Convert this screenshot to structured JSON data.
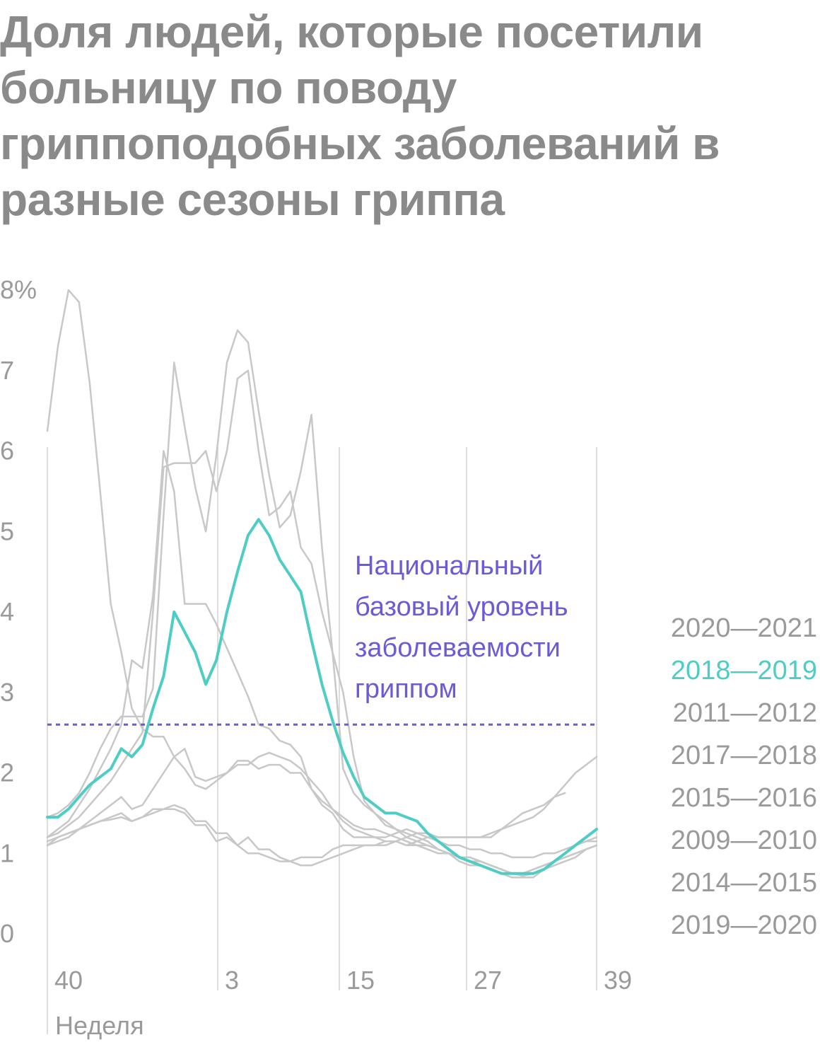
{
  "chart_data": {
    "type": "line",
    "title": "Доля людей, которые посетили больницу по поводу гриппоподобных заболеваний в разные сезоны гриппа",
    "xlabel": "Неделя",
    "ylabel": "",
    "y_unit": "%",
    "x_ticks": [
      "40",
      "3",
      "15",
      "27",
      "39"
    ],
    "y_ticks": [
      "0",
      "1",
      "2",
      "3",
      "4",
      "5",
      "6",
      "7",
      "8%"
    ],
    "ylim": [
      0,
      8
    ],
    "grid": "vertical",
    "legend_placement": "right",
    "baseline": {
      "value": 2.6,
      "label_lines": [
        "Национальный",
        "базовый уровень",
        "заболеваемости",
        "гриппом"
      ],
      "color": "#6b5bd6"
    },
    "highlight_color": "#4ecdc4",
    "muted_color": "#c8c8c8",
    "series": [
      {
        "name": "2020—2021",
        "highlight": false,
        "values": [
          1.1,
          1.2,
          1.25,
          1.3,
          1.35,
          1.4,
          1.42,
          1.45,
          1.4,
          1.45,
          1.5,
          1.55,
          1.55,
          1.5,
          1.35,
          1.35,
          1.15,
          1.2,
          1.1,
          1.0,
          1.0,
          0.95,
          0.9,
          0.9,
          0.85,
          0.85,
          0.9,
          0.95,
          1.0,
          1.05,
          1.1,
          1.1,
          1.15,
          1.15,
          1.1,
          1.15,
          1.2,
          1.15,
          1.1,
          1.1,
          1.05,
          1.05,
          1.0,
          1.0,
          0.95,
          0.95,
          0.95,
          1.0,
          1.0,
          1.05,
          1.1,
          1.15,
          1.15
        ]
      },
      {
        "name": "2018—2019",
        "highlight": true,
        "values": [
          1.45,
          1.45,
          1.55,
          1.7,
          1.85,
          1.95,
          2.05,
          2.3,
          2.2,
          2.35,
          2.8,
          3.2,
          4.0,
          3.75,
          3.5,
          3.1,
          3.4,
          4.0,
          4.5,
          4.95,
          5.15,
          4.95,
          4.65,
          4.45,
          4.25,
          3.65,
          3.1,
          2.65,
          2.25,
          1.95,
          1.7,
          1.6,
          1.5,
          1.5,
          1.45,
          1.4,
          1.25,
          1.15,
          1.05,
          0.95,
          0.9,
          0.85,
          0.8,
          0.75,
          0.75,
          0.75,
          0.75,
          0.8,
          0.9,
          1.0,
          1.1,
          1.2,
          1.3
        ]
      },
      {
        "name": "2011—2012",
        "highlight": false,
        "values": [
          1.15,
          1.2,
          1.25,
          1.3,
          1.35,
          1.4,
          1.45,
          1.5,
          1.4,
          1.45,
          1.55,
          1.55,
          1.6,
          1.55,
          1.4,
          1.4,
          1.25,
          1.25,
          1.1,
          1.2,
          1.05,
          1.05,
          0.95,
          0.9,
          0.95,
          0.95,
          0.95,
          1.05,
          1.1,
          1.1,
          1.1,
          1.1,
          1.1,
          1.15,
          1.2,
          1.25,
          1.2,
          1.2,
          1.2,
          1.2,
          1.2,
          1.2,
          1.25,
          1.3,
          1.4,
          1.5,
          1.55,
          1.6,
          1.7,
          1.75
        ]
      },
      {
        "name": "2017—2018",
        "highlight": false,
        "values": [
          1.2,
          1.25,
          1.35,
          1.45,
          1.6,
          1.75,
          1.9,
          2.1,
          2.3,
          2.5,
          4.0,
          5.8,
          5.85,
          5.85,
          5.85,
          6.0,
          5.5,
          6.0,
          6.9,
          7.0,
          6.0,
          5.2,
          5.3,
          5.5,
          4.8,
          4.6,
          4.0,
          3.5,
          3.0,
          2.2,
          1.65,
          1.5,
          1.35,
          1.3,
          1.25,
          1.2,
          1.15,
          1.05,
          1.0,
          0.9,
          0.85,
          0.85,
          0.8,
          0.75,
          0.7,
          0.7,
          0.7,
          0.8,
          0.9,
          1.0,
          1.1,
          1.15,
          1.2
        ]
      },
      {
        "name": "2015—2016",
        "highlight": false,
        "values": [
          1.1,
          1.15,
          1.2,
          1.3,
          1.4,
          1.5,
          1.6,
          1.7,
          1.55,
          1.6,
          1.8,
          2.0,
          2.2,
          2.05,
          1.85,
          1.8,
          1.9,
          2.0,
          2.15,
          2.15,
          2.05,
          2.1,
          2.1,
          2.0,
          2.0,
          1.8,
          1.6,
          1.5,
          1.3,
          1.2,
          1.2,
          1.2,
          1.2,
          1.25,
          1.3,
          1.25,
          1.25,
          1.2,
          1.2,
          1.2,
          1.2,
          1.2,
          1.2,
          1.3,
          1.35,
          1.4,
          1.45,
          1.55,
          1.7,
          1.85,
          2.0,
          2.1,
          2.2
        ]
      },
      {
        "name": "2009—2010",
        "highlight": false,
        "values": [
          6.25,
          7.3,
          8.0,
          7.85,
          6.85,
          5.5,
          4.1,
          3.5,
          2.8,
          2.55,
          2.45,
          2.45,
          2.2,
          2.3,
          1.95,
          1.9,
          1.95,
          2.0,
          2.1,
          2.1,
          2.2,
          2.25,
          2.2,
          2.15,
          2.05,
          1.9,
          1.75,
          1.55,
          1.4,
          1.3,
          1.25,
          1.2,
          1.15,
          1.15,
          1.1,
          1.1,
          1.05,
          1.0,
          1.0,
          0.95,
          0.95,
          0.9,
          0.85,
          0.8,
          0.75,
          0.75,
          0.8,
          0.85,
          0.9,
          0.95,
          1.0,
          1.05,
          1.1
        ]
      },
      {
        "name": "2014—2015",
        "highlight": false,
        "values": [
          1.2,
          1.3,
          1.4,
          1.6,
          1.8,
          2.05,
          2.3,
          2.6,
          3.4,
          3.3,
          4.2,
          6.0,
          5.5,
          4.1,
          4.1,
          4.1,
          3.85,
          3.55,
          3.25,
          2.95,
          2.6,
          2.55,
          2.4,
          2.35,
          2.2,
          1.8,
          1.65,
          1.55,
          1.45,
          1.35,
          1.3,
          1.3,
          1.25,
          1.2,
          1.15,
          1.1,
          1.1,
          1.05,
          1.0,
          0.95,
          0.95,
          0.9,
          0.85,
          0.8,
          0.75,
          0.75,
          0.8,
          0.85,
          0.9,
          0.95,
          1.0,
          1.05,
          1.1
        ]
      },
      {
        "name": "2019—2020",
        "highlight": false,
        "values": [
          1.45,
          1.5,
          1.6,
          1.75,
          2.0,
          2.3,
          2.55,
          2.7,
          2.7,
          2.7,
          3.05,
          5.2,
          7.1,
          6.3,
          5.55,
          5.0,
          5.95,
          7.1,
          7.5,
          7.35,
          6.5,
          5.7,
          5.05,
          5.2,
          5.75,
          6.45,
          4.8,
          3.5,
          2.05,
          1.75,
          1.6,
          1.5,
          1.4,
          1.3,
          1.2,
          1.15,
          1.1,
          1.05,
          1.0,
          0.95,
          0.9,
          0.9,
          0.85,
          0.8,
          0.75,
          0.72,
          0.75,
          0.8,
          0.85,
          0.9,
          0.95,
          1.05,
          1.1
        ]
      }
    ]
  }
}
